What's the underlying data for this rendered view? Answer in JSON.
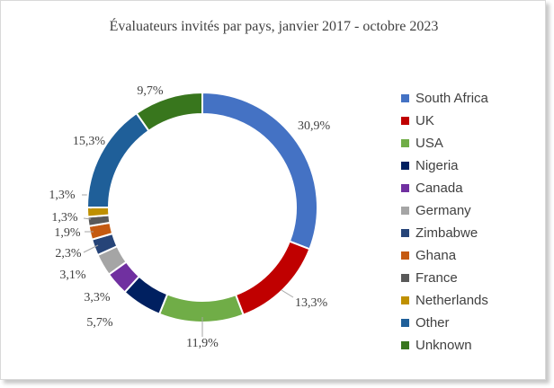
{
  "chart_data": {
    "type": "pie",
    "title": "Évaluateurs  invités  par pays, janvier  2017 - octobre 2023",
    "legend_position": "right",
    "categories": [
      "South Africa",
      "UK",
      "USA",
      "Nigeria",
      "Canada",
      "Germany",
      "Zimbabwe",
      "Ghana",
      "France",
      "Netherlands",
      "Other",
      "Unknown"
    ],
    "values": [
      30.9,
      13.3,
      11.9,
      5.7,
      3.3,
      3.1,
      2.3,
      1.9,
      1.3,
      1.3,
      15.3,
      9.7
    ],
    "labels": [
      "30,9%",
      "13,3%",
      "11,9%",
      "5,7%",
      "3,3%",
      "3,1%",
      "2,3%",
      "1,9%",
      "1,3%",
      "1,3%",
      "15,3%",
      "9,7%"
    ],
    "colors": [
      "#4472C4",
      "#C00000",
      "#70AD47",
      "#002060",
      "#7030A0",
      "#A5A5A5",
      "#264478",
      "#C55A11",
      "#595959",
      "#BF9000",
      "#1F5F99",
      "#38761D"
    ]
  }
}
